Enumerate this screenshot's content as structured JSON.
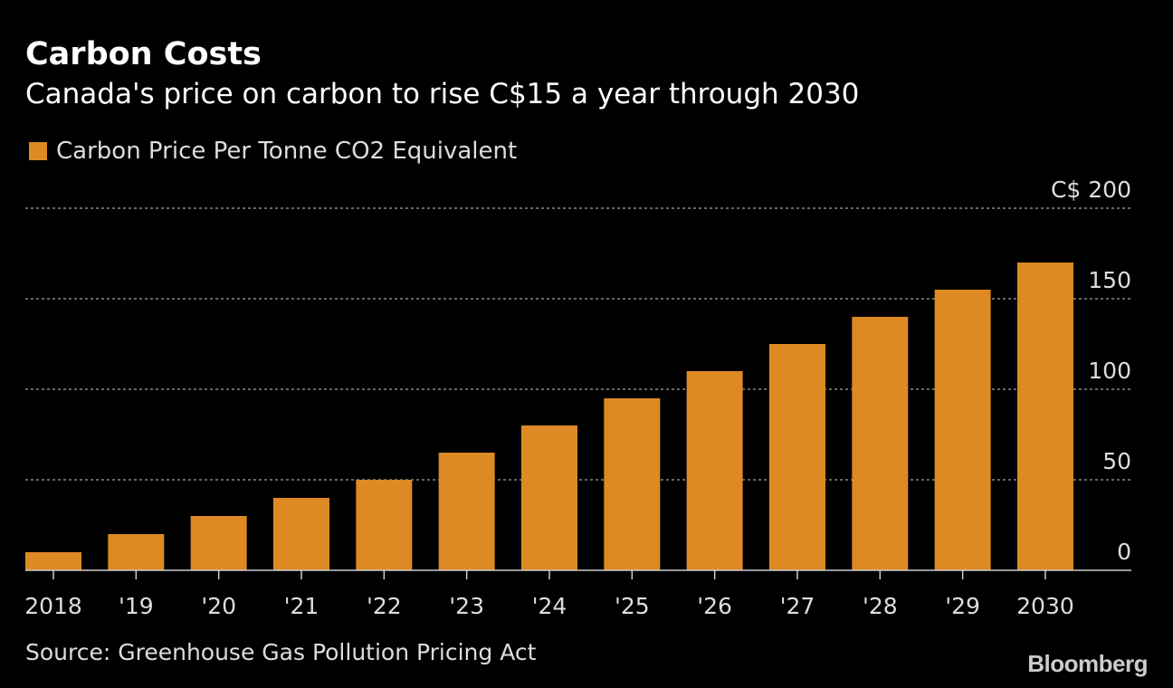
{
  "title": "Carbon Costs",
  "subtitle": "Canada's price on carbon to rise C$15 a year through 2030",
  "source": "Source: Greenhouse Gas Pollution Pricing Act",
  "logo": "Bloomberg",
  "chart_data": {
    "type": "bar",
    "title": "Carbon Costs",
    "categories": [
      "2018",
      "'19",
      "'20",
      "'21",
      "'22",
      "'23",
      "'24",
      "'25",
      "'26",
      "'27",
      "'28",
      "'29",
      "2030"
    ],
    "series": [
      {
        "name": "Carbon Price Per Tonne CO2 Equivalent",
        "values": [
          10,
          20,
          30,
          40,
          50,
          65,
          80,
          95,
          110,
          125,
          140,
          155,
          170
        ],
        "color": "#dd8a25"
      }
    ],
    "yticks": [
      0,
      50,
      100,
      150,
      200
    ],
    "ytick_labels": [
      "0",
      "50",
      "100",
      "150",
      "C$ 200"
    ],
    "ylim": [
      0,
      200
    ],
    "xlabel": "",
    "ylabel": "C$",
    "grid": true,
    "legend": "top-left"
  }
}
